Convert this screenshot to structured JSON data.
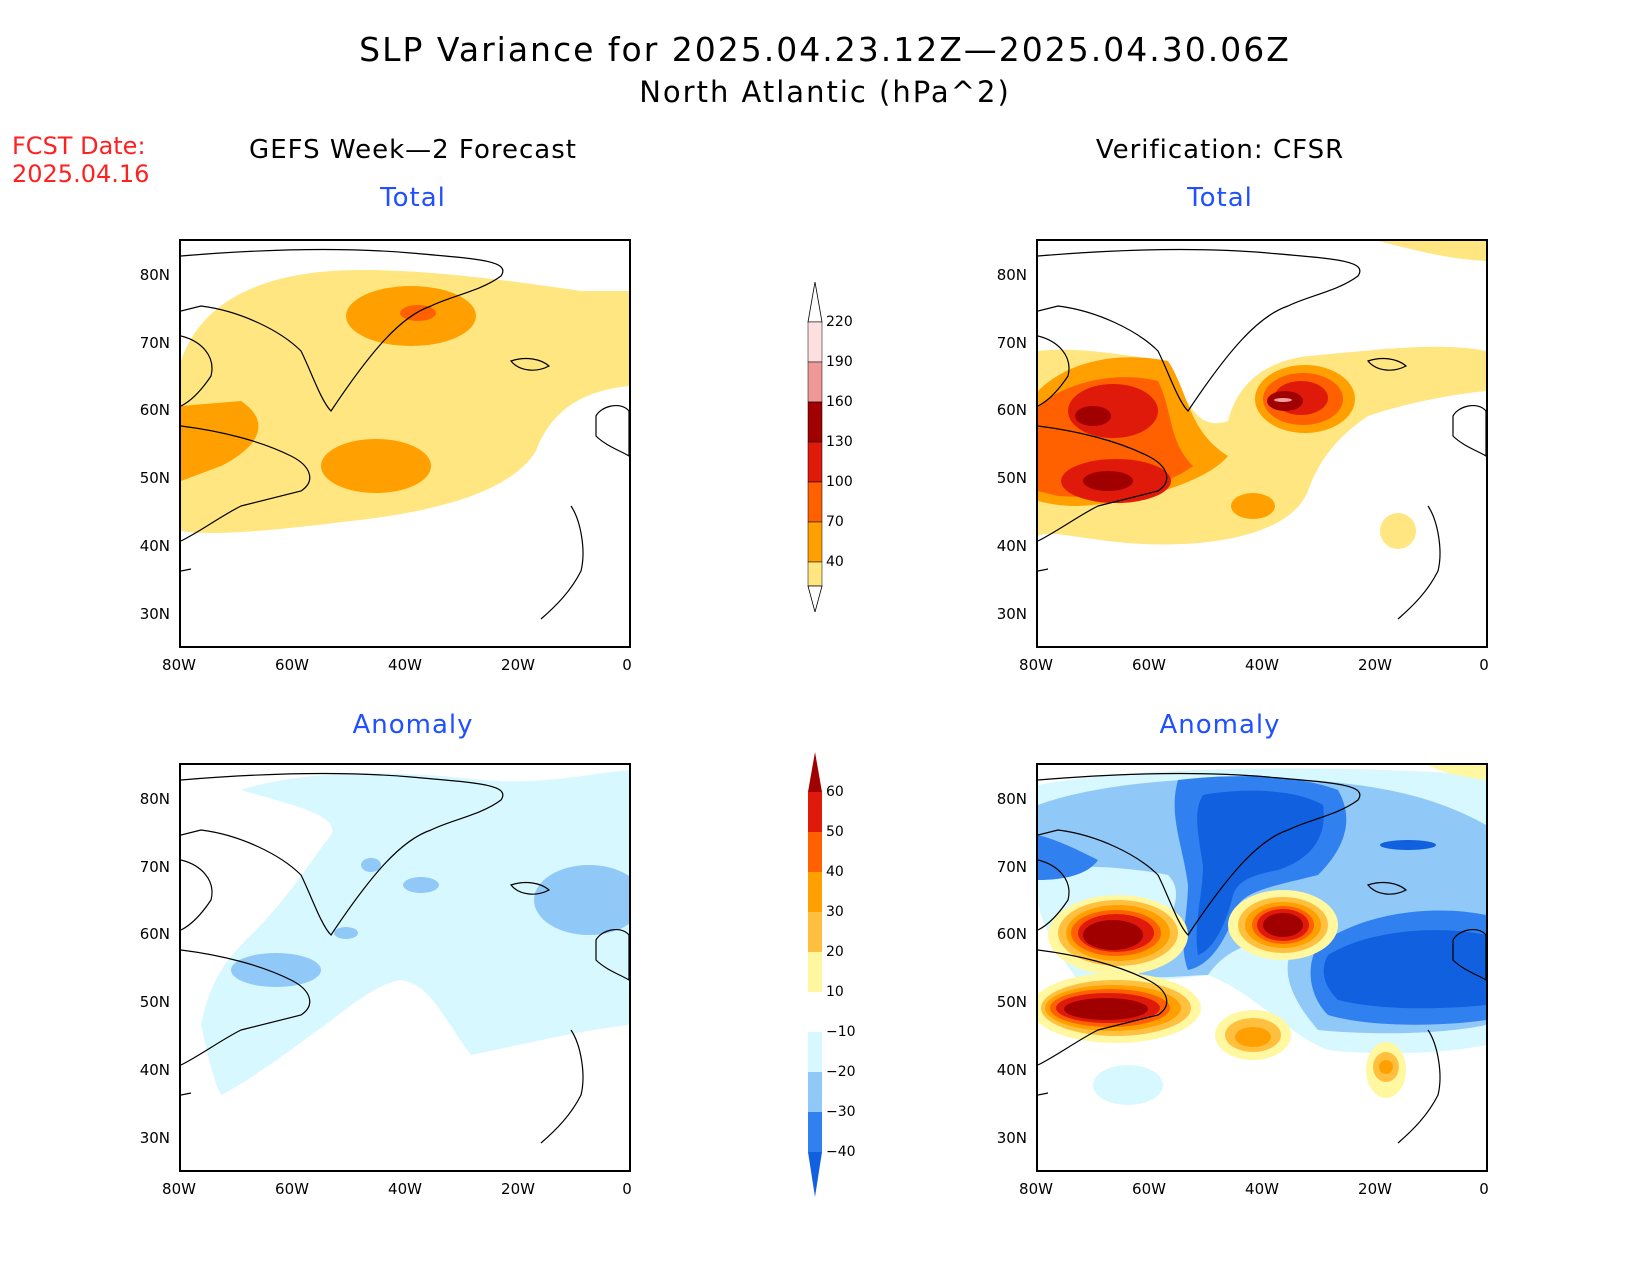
{
  "header": {
    "title": "SLP Variance for 2025.04.23.12Z—2025.04.30.06Z",
    "subtitle": "North Atlantic (hPa^2)",
    "fcst_line1": "FCST Date:",
    "fcst_line2": "2025.04.16"
  },
  "columns": {
    "left_title": "GEFS Week—2 Forecast",
    "right_title": "Verification: CFSR"
  },
  "panels": [
    {
      "id": "gefs-total",
      "subtitle": "Total"
    },
    {
      "id": "cfsr-total",
      "subtitle": "Total"
    },
    {
      "id": "gefs-anomaly",
      "subtitle": "Anomaly"
    },
    {
      "id": "cfsr-anomaly",
      "subtitle": "Anomaly"
    }
  ],
  "axes": {
    "lat_labels": [
      "80N",
      "70N",
      "60N",
      "50N",
      "40N",
      "30N"
    ],
    "lon_labels": [
      "80W",
      "60W",
      "40W",
      "20W",
      "0"
    ]
  },
  "colorbar_total": {
    "labels": [
      "40",
      "70",
      "100",
      "130",
      "160",
      "190",
      "220"
    ],
    "colors": [
      "#ffe680",
      "#ffa000",
      "#ff6000",
      "#e01a0a",
      "#a00000",
      "#f09898",
      "#ffe0e0"
    ]
  },
  "colorbar_anomaly": {
    "labels": [
      "−40",
      "−30",
      "−20",
      "−10",
      "10",
      "20",
      "30",
      "40",
      "50",
      "60"
    ],
    "colors": [
      "#1060e0",
      "#3080f0",
      "#90c8f8",
      "#d8f8ff",
      "#ffffff",
      "#fff8a0",
      "#ffc040",
      "#ffa000",
      "#ff6000",
      "#e01a0a",
      "#a00000"
    ]
  }
}
